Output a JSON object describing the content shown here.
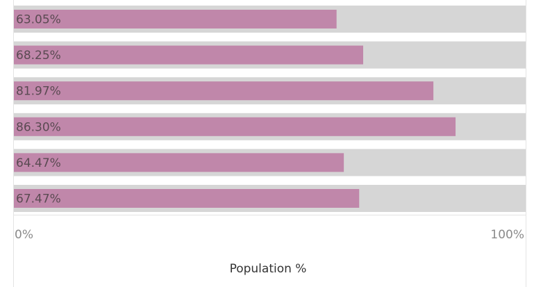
{
  "chart_data": {
    "type": "bar",
    "orientation": "horizontal",
    "values": [
      63.05,
      68.25,
      81.97,
      86.3,
      64.47,
      67.47
    ],
    "labels": [
      "63.05%",
      "68.25%",
      "81.97%",
      "86.30%",
      "64.47%",
      "67.47%"
    ],
    "xlim": [
      0,
      100
    ],
    "x_ticks": [
      "0%",
      "100%"
    ],
    "xlabel": "Population %",
    "grid": false
  },
  "colors": {
    "bar": "#c087aa",
    "track": "#d6d6d6",
    "background": "#ffffff"
  }
}
